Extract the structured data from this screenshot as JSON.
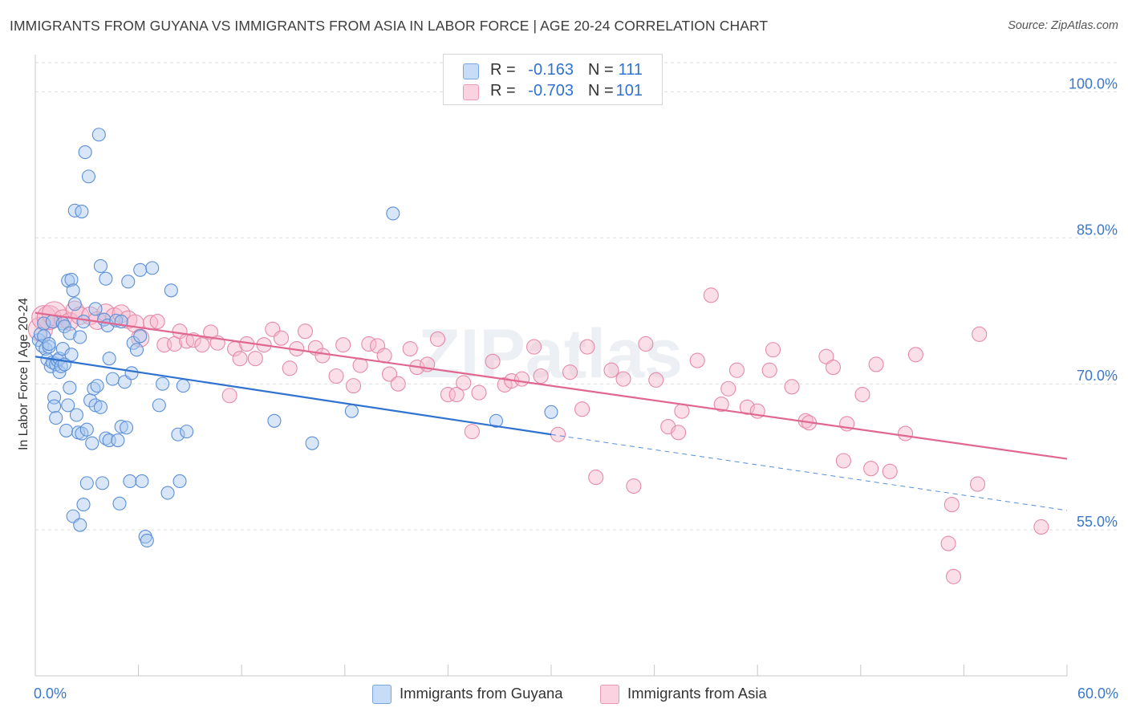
{
  "title": "IMMIGRANTS FROM GUYANA VS IMMIGRANTS FROM ASIA IN LABOR FORCE | AGE 20-24 CORRELATION CHART",
  "source": "Source: ZipAtlas.com",
  "watermark": "ZIPatlas",
  "legend_top": {
    "rows": [
      {
        "r_key": "R =",
        "r": "-0.163",
        "n_key": "N =",
        "n": "111",
        "color": "#a8c8f0"
      },
      {
        "r_key": "R =",
        "r": "-0.703",
        "n_key": "N =",
        "n": "101",
        "color": "#f7b8cc"
      }
    ]
  },
  "legend_bottom": [
    {
      "label": "Immigrants from Guyana",
      "color": "#a8c8f0"
    },
    {
      "label": "Immigrants from Asia",
      "color": "#f7b8cc"
    }
  ],
  "chart_data": {
    "type": "scatter",
    "title": "IMMIGRANTS FROM GUYANA VS IMMIGRANTS FROM ASIA IN LABOR FORCE | AGE 20-24 CORRELATION CHART",
    "xlabel": "",
    "ylabel": "In Labor Force | Age 20-24",
    "xlim": [
      0,
      60
    ],
    "ylim": [
      40,
      103
    ],
    "x_tick_labels": [
      "0.0%",
      "60.0%"
    ],
    "y_ticks": [
      55,
      70,
      85,
      100
    ],
    "y_tick_labels": [
      "55.0%",
      "70.0%",
      "85.0%",
      "100.0%"
    ],
    "grid": true,
    "colors": {
      "guyana_fill": "#a8c8f0",
      "guyana_stroke": "#5b8fd6",
      "guyana_line": "#2f72d0",
      "asia_fill": "#f7b8cc",
      "asia_stroke": "#e58aa8",
      "asia_line": "#e0678f",
      "tick_label": "#3b78c9"
    },
    "series": [
      {
        "name": "Immigrants from Guyana",
        "r": -0.163,
        "n": 111,
        "trend": {
          "x": [
            0,
            30
          ],
          "y": [
            72.8,
            64.8
          ],
          "dashed_to": [
            60,
            57.0
          ]
        },
        "points": [
          [
            0.2,
            74.5
          ],
          [
            0.3,
            75.1
          ],
          [
            0.4,
            73.9
          ],
          [
            0.5,
            76.2
          ],
          [
            0.5,
            74.9
          ],
          [
            0.6,
            73.6
          ],
          [
            0.7,
            72.5
          ],
          [
            0.8,
            73.8
          ],
          [
            0.8,
            74.1
          ],
          [
            0.9,
            71.8
          ],
          [
            1.0,
            72.2
          ],
          [
            1.0,
            76.4
          ],
          [
            1.1,
            68.6
          ],
          [
            1.1,
            67.7
          ],
          [
            1.2,
            72.0
          ],
          [
            1.2,
            66.5
          ],
          [
            1.3,
            72.4
          ],
          [
            1.4,
            72.6
          ],
          [
            1.4,
            71.2
          ],
          [
            1.5,
            71.8
          ],
          [
            1.6,
            76.2
          ],
          [
            1.6,
            73.6
          ],
          [
            1.7,
            75.9
          ],
          [
            1.7,
            72.0
          ],
          [
            1.8,
            65.2
          ],
          [
            1.9,
            67.8
          ],
          [
            1.9,
            80.6
          ],
          [
            2.0,
            69.6
          ],
          [
            2.0,
            75.2
          ],
          [
            2.1,
            80.7
          ],
          [
            2.1,
            73.0
          ],
          [
            2.2,
            79.6
          ],
          [
            2.2,
            56.4
          ],
          [
            2.3,
            78.2
          ],
          [
            2.3,
            87.8
          ],
          [
            2.4,
            66.8
          ],
          [
            2.5,
            65.0
          ],
          [
            2.6,
            74.8
          ],
          [
            2.6,
            55.5
          ],
          [
            2.7,
            64.9
          ],
          [
            2.7,
            87.7
          ],
          [
            2.8,
            57.6
          ],
          [
            2.8,
            76.4
          ],
          [
            2.9,
            93.8
          ],
          [
            3.0,
            59.8
          ],
          [
            3.0,
            65.3
          ],
          [
            3.1,
            91.3
          ],
          [
            3.2,
            68.3
          ],
          [
            3.3,
            63.9
          ],
          [
            3.4,
            69.5
          ],
          [
            3.5,
            77.7
          ],
          [
            3.5,
            67.8
          ],
          [
            3.6,
            69.8
          ],
          [
            3.7,
            95.6
          ],
          [
            3.8,
            82.1
          ],
          [
            3.8,
            67.6
          ],
          [
            3.9,
            59.8
          ],
          [
            4.0,
            76.6
          ],
          [
            4.1,
            80.8
          ],
          [
            4.1,
            64.4
          ],
          [
            4.2,
            76.0
          ],
          [
            4.3,
            72.6
          ],
          [
            4.3,
            64.2
          ],
          [
            4.5,
            70.5
          ],
          [
            4.7,
            76.5
          ],
          [
            4.8,
            64.2
          ],
          [
            4.9,
            57.7
          ],
          [
            5.0,
            65.6
          ],
          [
            5.0,
            76.4
          ],
          [
            5.2,
            70.2
          ],
          [
            5.3,
            65.5
          ],
          [
            5.4,
            80.5
          ],
          [
            5.5,
            60.0
          ],
          [
            5.6,
            71.1
          ],
          [
            5.7,
            74.2
          ],
          [
            5.9,
            73.5
          ],
          [
            6.1,
            81.7
          ],
          [
            6.1,
            74.9
          ],
          [
            6.2,
            60.0
          ],
          [
            6.4,
            54.3
          ],
          [
            6.5,
            53.9
          ],
          [
            6.8,
            81.9
          ],
          [
            7.2,
            67.8
          ],
          [
            7.4,
            70.0
          ],
          [
            7.7,
            58.8
          ],
          [
            7.9,
            79.6
          ],
          [
            8.3,
            64.8
          ],
          [
            8.4,
            60.0
          ],
          [
            8.6,
            69.8
          ],
          [
            8.8,
            65.1
          ],
          [
            20.8,
            87.5
          ],
          [
            13.9,
            66.2
          ],
          [
            16.1,
            63.9
          ],
          [
            18.4,
            67.2
          ],
          [
            26.8,
            66.2
          ],
          [
            30.0,
            67.1
          ]
        ]
      },
      {
        "name": "Immigrants from Asia",
        "r": -0.703,
        "n": 101,
        "trend": {
          "x": [
            0,
            60
          ],
          "y": [
            77.3,
            62.3
          ]
        },
        "points": [
          [
            0.3,
            75.6
          ],
          [
            0.5,
            76.8
          ],
          [
            0.8,
            76.8
          ],
          [
            1.1,
            77.2
          ],
          [
            1.6,
            76.7
          ],
          [
            2.0,
            76.4
          ],
          [
            2.3,
            77.6
          ],
          [
            2.6,
            77.0
          ],
          [
            3.2,
            77.0
          ],
          [
            3.6,
            76.5
          ],
          [
            4.1,
            77.3
          ],
          [
            4.6,
            76.9
          ],
          [
            5.0,
            77.2
          ],
          [
            5.4,
            76.6
          ],
          [
            5.8,
            76.2
          ],
          [
            6.1,
            74.7
          ],
          [
            6.7,
            76.3
          ],
          [
            7.1,
            76.4
          ],
          [
            7.5,
            74.0
          ],
          [
            8.1,
            74.1
          ],
          [
            8.4,
            75.4
          ],
          [
            8.8,
            74.4
          ],
          [
            9.2,
            74.5
          ],
          [
            9.7,
            74.0
          ],
          [
            10.2,
            75.3
          ],
          [
            10.6,
            74.2
          ],
          [
            11.3,
            68.8
          ],
          [
            11.6,
            73.6
          ],
          [
            11.9,
            72.6
          ],
          [
            12.3,
            74.1
          ],
          [
            12.8,
            72.6
          ],
          [
            13.3,
            74.0
          ],
          [
            13.8,
            75.6
          ],
          [
            14.3,
            74.7
          ],
          [
            14.8,
            71.6
          ],
          [
            15.2,
            73.6
          ],
          [
            15.7,
            75.4
          ],
          [
            16.3,
            73.7
          ],
          [
            16.7,
            72.9
          ],
          [
            17.5,
            70.8
          ],
          [
            17.9,
            74.0
          ],
          [
            18.5,
            69.8
          ],
          [
            18.9,
            71.9
          ],
          [
            19.4,
            74.1
          ],
          [
            19.9,
            73.9
          ],
          [
            20.3,
            72.9
          ],
          [
            20.6,
            71.0
          ],
          [
            21.1,
            70.0
          ],
          [
            21.8,
            73.6
          ],
          [
            22.2,
            71.7
          ],
          [
            22.8,
            72.0
          ],
          [
            23.4,
            74.6
          ],
          [
            24.0,
            68.9
          ],
          [
            24.5,
            68.9
          ],
          [
            24.9,
            70.1
          ],
          [
            25.4,
            65.1
          ],
          [
            25.8,
            69.1
          ],
          [
            26.6,
            72.3
          ],
          [
            27.3,
            69.9
          ],
          [
            27.7,
            70.3
          ],
          [
            28.3,
            70.5
          ],
          [
            29.0,
            73.8
          ],
          [
            29.4,
            70.8
          ],
          [
            30.4,
            64.8
          ],
          [
            31.1,
            71.2
          ],
          [
            31.8,
            67.4
          ],
          [
            32.1,
            73.8
          ],
          [
            32.6,
            60.4
          ],
          [
            33.5,
            71.4
          ],
          [
            34.2,
            70.5
          ],
          [
            34.8,
            59.5
          ],
          [
            35.5,
            74.1
          ],
          [
            36.1,
            70.4
          ],
          [
            36.8,
            65.6
          ],
          [
            37.4,
            65.0
          ],
          [
            37.6,
            67.2
          ],
          [
            38.5,
            72.4
          ],
          [
            39.3,
            79.1
          ],
          [
            39.9,
            67.9
          ],
          [
            40.3,
            69.5
          ],
          [
            40.8,
            71.4
          ],
          [
            41.4,
            67.6
          ],
          [
            42.0,
            67.2
          ],
          [
            42.7,
            71.4
          ],
          [
            42.9,
            73.5
          ],
          [
            44.0,
            69.7
          ],
          [
            44.8,
            66.2
          ],
          [
            45.0,
            66.0
          ],
          [
            46.0,
            72.8
          ],
          [
            46.4,
            71.7
          ],
          [
            47.0,
            62.1
          ],
          [
            47.2,
            65.9
          ],
          [
            48.1,
            68.9
          ],
          [
            48.6,
            61.3
          ],
          [
            48.9,
            72.0
          ],
          [
            49.7,
            61.0
          ],
          [
            50.6,
            64.9
          ],
          [
            51.2,
            73.0
          ],
          [
            53.1,
            53.6
          ],
          [
            53.3,
            57.6
          ],
          [
            53.4,
            50.2
          ],
          [
            54.8,
            59.7
          ],
          [
            54.9,
            75.1
          ],
          [
            58.5,
            55.3
          ]
        ]
      }
    ]
  }
}
